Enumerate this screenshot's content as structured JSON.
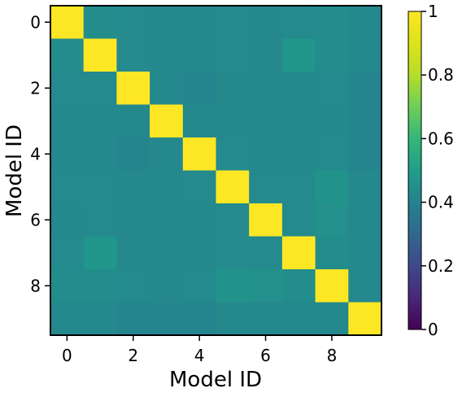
{
  "chart_data": {
    "type": "heatmap",
    "title": "",
    "xlabel": "Model ID",
    "ylabel": "Model ID",
    "x_ticks": [
      "0",
      "2",
      "4",
      "6",
      "8"
    ],
    "y_ticks": [
      "0",
      "2",
      "4",
      "6",
      "8"
    ],
    "x_tick_values": [
      0,
      2,
      4,
      6,
      8
    ],
    "y_tick_values": [
      0,
      2,
      4,
      6,
      8
    ],
    "colormap": "viridis",
    "vmin": 0,
    "vmax": 1,
    "colorbar_ticks": [
      "0",
      "0.2",
      "0.4",
      "0.6",
      "0.8",
      "1"
    ],
    "colorbar_tick_values": [
      0,
      0.2,
      0.4,
      0.6,
      0.8,
      1
    ],
    "matrix": [
      [
        1.0,
        0.44,
        0.43,
        0.42,
        0.42,
        0.43,
        0.42,
        0.43,
        0.44,
        0.42
      ],
      [
        0.44,
        1.0,
        0.43,
        0.42,
        0.42,
        0.43,
        0.42,
        0.47,
        0.44,
        0.42
      ],
      [
        0.43,
        0.43,
        1.0,
        0.42,
        0.41,
        0.42,
        0.42,
        0.42,
        0.43,
        0.41
      ],
      [
        0.42,
        0.42,
        0.42,
        1.0,
        0.42,
        0.42,
        0.42,
        0.42,
        0.42,
        0.41
      ],
      [
        0.42,
        0.42,
        0.41,
        0.42,
        1.0,
        0.43,
        0.42,
        0.42,
        0.43,
        0.41
      ],
      [
        0.43,
        0.43,
        0.42,
        0.42,
        0.43,
        1.0,
        0.43,
        0.43,
        0.46,
        0.42
      ],
      [
        0.42,
        0.43,
        0.42,
        0.42,
        0.42,
        0.43,
        1.0,
        0.43,
        0.45,
        0.42
      ],
      [
        0.43,
        0.47,
        0.42,
        0.42,
        0.42,
        0.43,
        0.43,
        1.0,
        0.44,
        0.42
      ],
      [
        0.44,
        0.44,
        0.43,
        0.42,
        0.43,
        0.46,
        0.45,
        0.44,
        1.0,
        0.42
      ],
      [
        0.42,
        0.42,
        0.41,
        0.41,
        0.41,
        0.42,
        0.42,
        0.42,
        0.42,
        1.0
      ]
    ]
  }
}
